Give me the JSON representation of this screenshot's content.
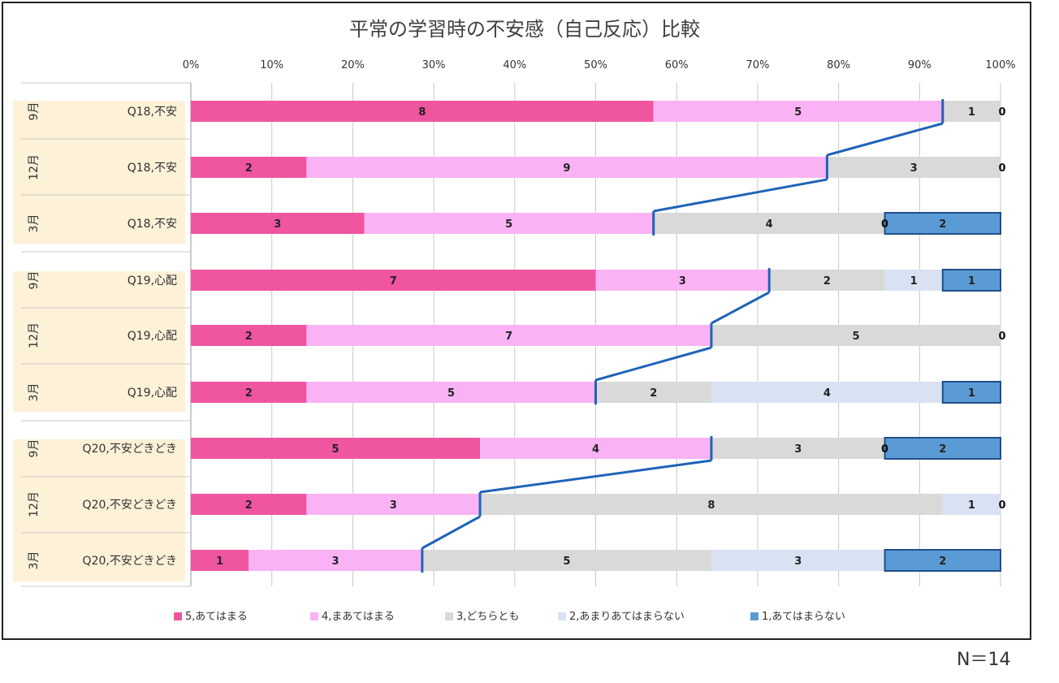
{
  "footnote": "N＝14",
  "chart_data": {
    "type": "bar",
    "stacked": "percent",
    "orientation": "horizontal",
    "title": "平常の学習時の不安感（自己反応）比較",
    "x_ticks": [
      "0%",
      "10%",
      "20%",
      "30%",
      "40%",
      "50%",
      "60%",
      "70%",
      "80%",
      "90%",
      "100%"
    ],
    "xlim": [
      0,
      100
    ],
    "grid": true,
    "legend_position": "bottom",
    "groups": [
      {
        "label": "Q18,不安",
        "rows": [
          "9月",
          "12月",
          "3月"
        ]
      },
      {
        "label": "Q19,心配",
        "rows": [
          "9月",
          "12月",
          "3月"
        ]
      },
      {
        "label": "Q20,不安どきどき",
        "rows": [
          "9月",
          "12月",
          "3月"
        ]
      }
    ],
    "categories": [
      {
        "month": "9月",
        "item": "Q18,不安"
      },
      {
        "month": "12月",
        "item": "Q18,不安"
      },
      {
        "month": "3月",
        "item": "Q18,不安"
      },
      {
        "month": "9月",
        "item": "Q19,心配"
      },
      {
        "month": "12月",
        "item": "Q19,心配"
      },
      {
        "month": "3月",
        "item": "Q19,心配"
      },
      {
        "month": "9月",
        "item": "Q20,不安どきどき"
      },
      {
        "month": "12月",
        "item": "Q20,不安どきどき"
      },
      {
        "month": "3月",
        "item": "Q20,不安どきどき"
      }
    ],
    "series": [
      {
        "name": "5,あてはまる",
        "color": "#f0559f",
        "values": [
          8,
          2,
          3,
          7,
          2,
          2,
          5,
          2,
          1
        ]
      },
      {
        "name": "4,まあてはまる",
        "color": "#f9b3f5",
        "values": [
          5,
          9,
          5,
          3,
          7,
          5,
          4,
          3,
          3
        ]
      },
      {
        "name": "3,どちらとも",
        "color": "#d9d9d9",
        "values": [
          1,
          3,
          4,
          2,
          5,
          2,
          3,
          8,
          5
        ]
      },
      {
        "name": "2,あまりあてはまらない",
        "color": "#d9e2f3",
        "values": [
          0,
          0,
          0,
          1,
          0,
          4,
          0,
          1,
          3
        ]
      },
      {
        "name": "1,あてはまらない",
        "color": "#5b9bd5",
        "values": [
          0,
          0,
          2,
          1,
          0,
          1,
          2,
          0,
          2
        ]
      }
    ],
    "zero_labels_shown": [
      {
        "row": 0,
        "series": 4
      },
      {
        "row": 1,
        "series": 4
      },
      {
        "row": 2,
        "series": 3
      },
      {
        "row": 4,
        "series": 4
      },
      {
        "row": 6,
        "series": 3
      },
      {
        "row": 7,
        "series": 4
      }
    ],
    "connector_lines": "series line joining the cumulative boundary of 5+4 between consecutive months",
    "colors": {
      "connector": "#1f63b8",
      "group_band": "#fdf1d8",
      "grid": "#c8c8c8"
    }
  }
}
